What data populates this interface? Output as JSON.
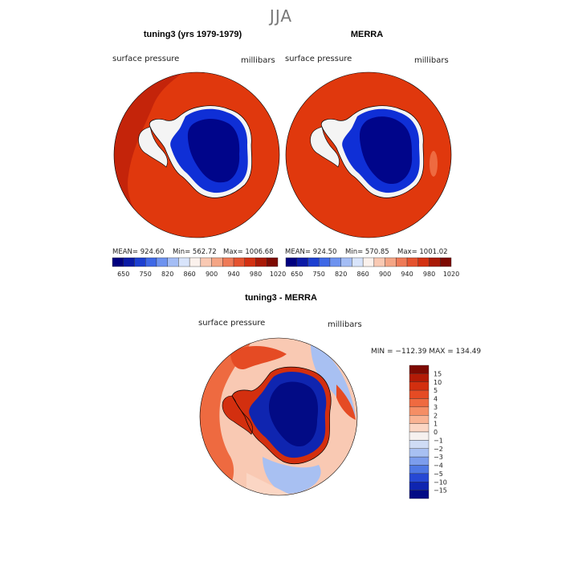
{
  "page": {
    "super_title": "JJA",
    "panels": [
      {
        "title": "tuning3 (yrs 1979-1979)",
        "variable_label": "surface pressure",
        "units_label": "millibars",
        "stats": {
          "mean_label": "MEAN= 924.60",
          "min_label": "Min= 562.72",
          "max_label": "Max= 1006.68"
        }
      },
      {
        "title": "MERRA",
        "variable_label": "surface pressure",
        "units_label": "millibars",
        "stats": {
          "mean_label": "MEAN= 924.50",
          "min_label": "Min= 570.85",
          "max_label": "Max= 1001.02"
        }
      },
      {
        "title": "tuning3 - MERRA",
        "variable_label": "surface pressure",
        "units_label": "millibars",
        "stats": {
          "minmax_label": "MIN = −112.39 MAX = 134.49"
        }
      }
    ]
  },
  "colors": {
    "ocean_red": "#e0380d",
    "ocean_dark_red": "#c4240a",
    "land_dark_blue": "#00058a",
    "land_blue": "#0f2fd6",
    "coast_white": "#f4f4f4"
  },
  "chart_data": [
    {
      "type": "heatmap",
      "name": "tuning3 (yrs 1979-1979)",
      "projection": "south-polar stereographic",
      "field": "surface pressure",
      "units": "millibars",
      "mean": 924.6,
      "min": 562.72,
      "max": 1006.68,
      "colorbar": {
        "orientation": "horizontal",
        "levels": [
          650,
          750,
          820,
          860,
          900,
          940,
          980,
          1020
        ],
        "colors": [
          "#00007f",
          "#0a1aa6",
          "#1c3fd0",
          "#3e68e6",
          "#6d92ef",
          "#a4bdf5",
          "#d8e4fb",
          "#fbf1ec",
          "#f9c9b3",
          "#f4a585",
          "#ee7a57",
          "#e5532f",
          "#d33112",
          "#a91a06",
          "#7d0a02"
        ]
      },
      "description_values": {
        "ocean_level_mb": 990,
        "interior_plateau_mb": 650
      }
    },
    {
      "type": "heatmap",
      "name": "MERRA",
      "projection": "south-polar stereographic",
      "field": "surface pressure",
      "units": "millibars",
      "mean": 924.5,
      "min": 570.85,
      "max": 1001.02,
      "colorbar": {
        "orientation": "horizontal",
        "levels": [
          650,
          750,
          820,
          860,
          900,
          940,
          980,
          1020
        ],
        "colors": [
          "#00007f",
          "#0a1aa6",
          "#1c3fd0",
          "#3e68e6",
          "#6d92ef",
          "#a4bdf5",
          "#d8e4fb",
          "#fbf1ec",
          "#f9c9b3",
          "#f4a585",
          "#ee7a57",
          "#e5532f",
          "#d33112",
          "#a91a06",
          "#7d0a02"
        ]
      }
    },
    {
      "type": "heatmap",
      "name": "tuning3 - MERRA",
      "projection": "south-polar stereographic",
      "field": "surface pressure difference",
      "units": "millibars",
      "min": -112.39,
      "max": 134.49,
      "colorbar": {
        "orientation": "vertical",
        "levels": [
          "15",
          "10",
          "5",
          "4",
          "3",
          "2",
          "1",
          "0",
          "−1",
          "−2",
          "−3",
          "−4",
          "−5",
          "−10",
          "−15"
        ],
        "colors": [
          "#7d0a02",
          "#b31b06",
          "#d32f0f",
          "#e54b24",
          "#ef6a40",
          "#f58e65",
          "#f9b393",
          "#fbd6c4",
          "#f6f1ef",
          "#cfdcf5",
          "#a8c0f2",
          "#7c9ded",
          "#4f78e4",
          "#2648d4",
          "#0f25b0",
          "#020b85"
        ]
      }
    }
  ]
}
